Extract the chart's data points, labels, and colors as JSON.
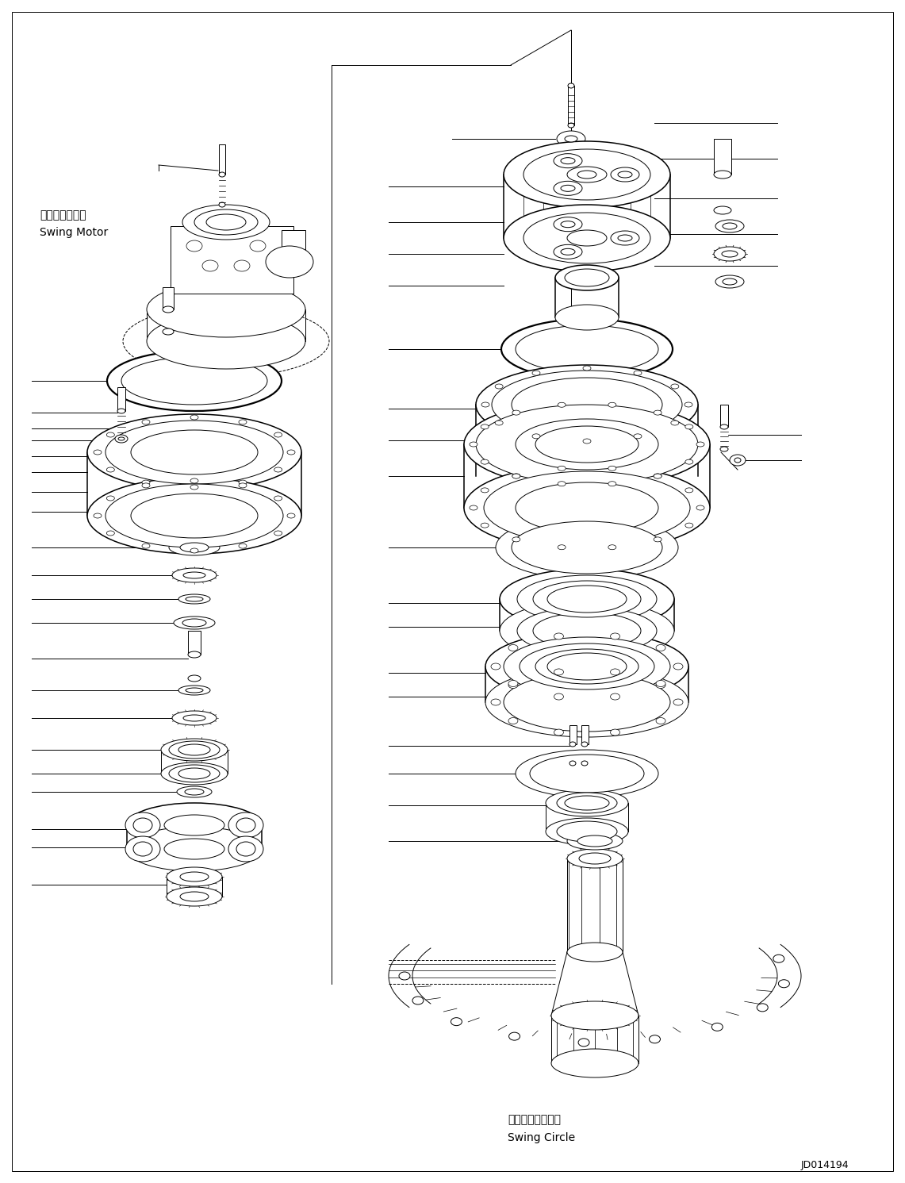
{
  "background_color": "#ffffff",
  "line_color": "#000000",
  "label_swing_motor_jp": "スイングモータ",
  "label_swing_motor_en": "Swing Motor",
  "label_swing_circle_jp": "スイングサークル",
  "label_swing_circle_en": "Swing Circle",
  "doc_number": "JD014194",
  "figsize": [
    11.41,
    14.91
  ],
  "dpi": 100
}
